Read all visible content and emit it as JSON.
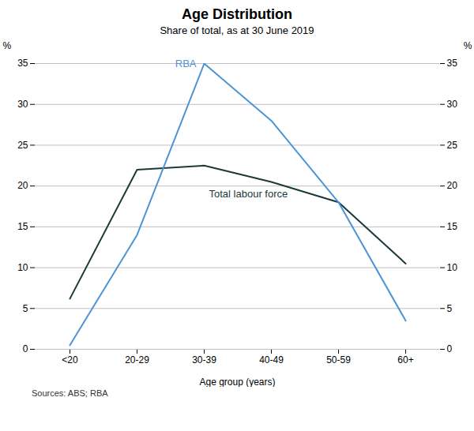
{
  "chart_data": {
    "type": "line",
    "title": "Age Distribution",
    "subtitle": "Share of total, as at 30 June 2019",
    "xlabel": "Age group (years)",
    "ylabel": "%",
    "y2label": "%",
    "categories": [
      "<20",
      "20-29",
      "30-39",
      "40-49",
      "50-59",
      "60+"
    ],
    "series": [
      {
        "name": "Total labour force",
        "color": "#1a3a3a",
        "values": [
          6.2,
          22.0,
          22.5,
          20.5,
          18.0,
          10.5
        ]
      },
      {
        "name": "RBA",
        "color": "#4d94d4",
        "values": [
          0.5,
          14.0,
          35.0,
          28.0,
          18.0,
          3.5
        ]
      }
    ],
    "ylim": [
      0,
      35
    ],
    "yticks": [
      0,
      5,
      10,
      15,
      20,
      25,
      30,
      35
    ],
    "y2lim": [
      0,
      35
    ],
    "y2ticks": [
      0,
      5,
      10,
      15,
      20,
      25,
      30,
      35
    ],
    "grid": true,
    "source": "Sources: ABS; RBA"
  }
}
